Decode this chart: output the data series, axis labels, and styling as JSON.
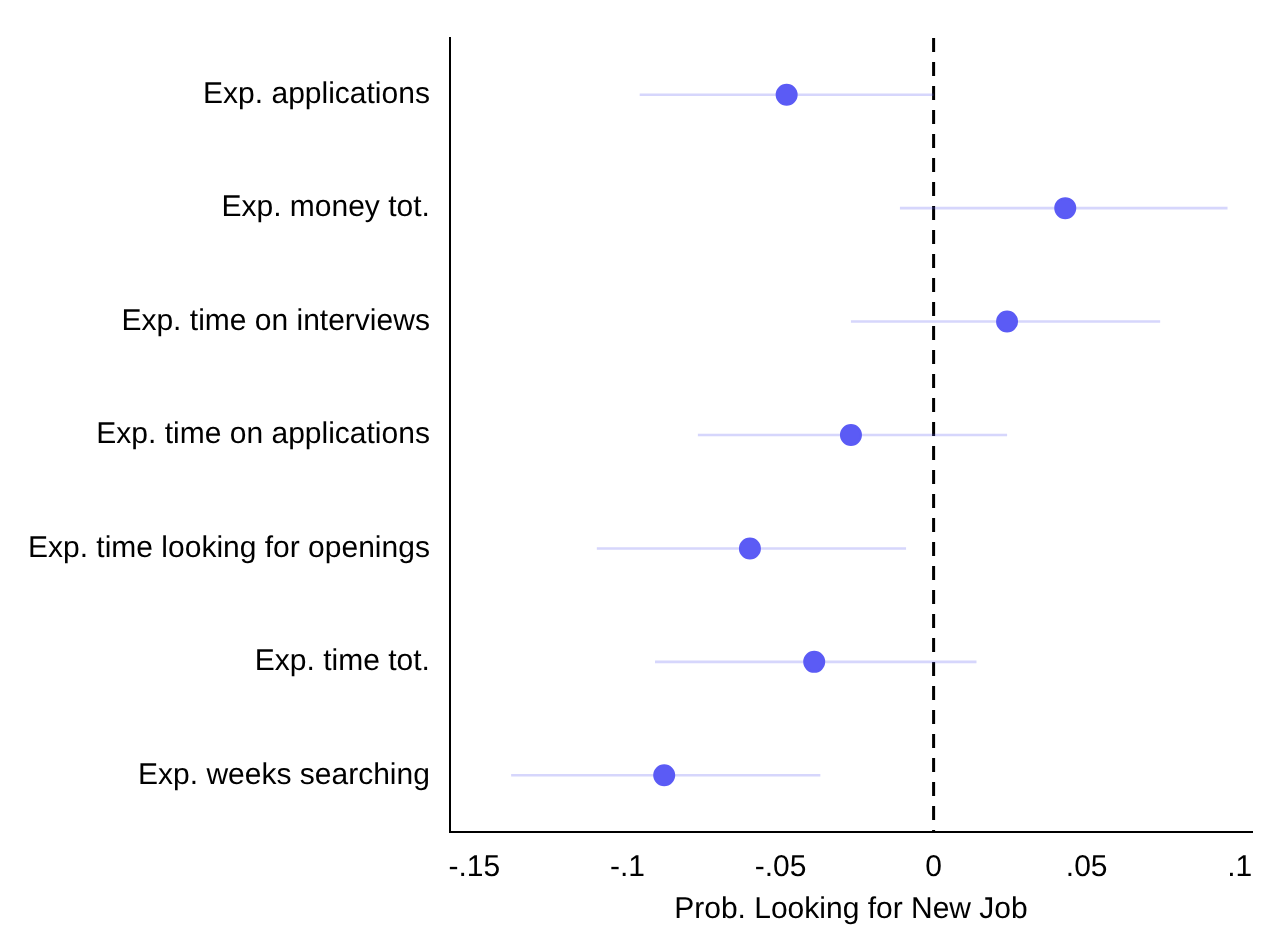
{
  "chart_data": {
    "type": "scatter",
    "xlabel": "Prob. Looking for New Job",
    "categories": [
      "Exp. applications",
      "Exp. money tot.",
      "Exp. time on interviews",
      "Exp. time on applications",
      "Exp. time looking for openings",
      "Exp. time tot.",
      "Exp. weeks searching"
    ],
    "series": [
      {
        "color": "#5b5bf5",
        "values": [
          -0.048,
          0.043,
          0.024,
          -0.027,
          -0.06,
          -0.039,
          -0.088
        ],
        "errors": [
          [
            -0.096,
            0.0
          ],
          [
            -0.011,
            0.096
          ],
          [
            -0.027,
            0.074
          ],
          [
            -0.077,
            0.024
          ],
          [
            -0.11,
            -0.009
          ],
          [
            -0.091,
            0.014
          ],
          [
            -0.138,
            -0.037
          ]
        ]
      }
    ],
    "orientation": "horizontal",
    "xlim": [
      -0.158,
      0.104
    ],
    "xticks": [
      {
        "value": -0.15,
        "label": "-.15"
      },
      {
        "value": -0.1,
        "label": "-.1"
      },
      {
        "value": -0.05,
        "label": "-.05"
      },
      0,
      {
        "value": 0.05,
        "label": ".05"
      },
      {
        "value": 0.1,
        "label": ".1"
      }
    ],
    "ref_lines": [
      {
        "axis": "x",
        "value": 0,
        "line_style": "dashed",
        "color": "#000000"
      }
    ],
    "grid": false,
    "legend": false,
    "marker": "circle"
  }
}
